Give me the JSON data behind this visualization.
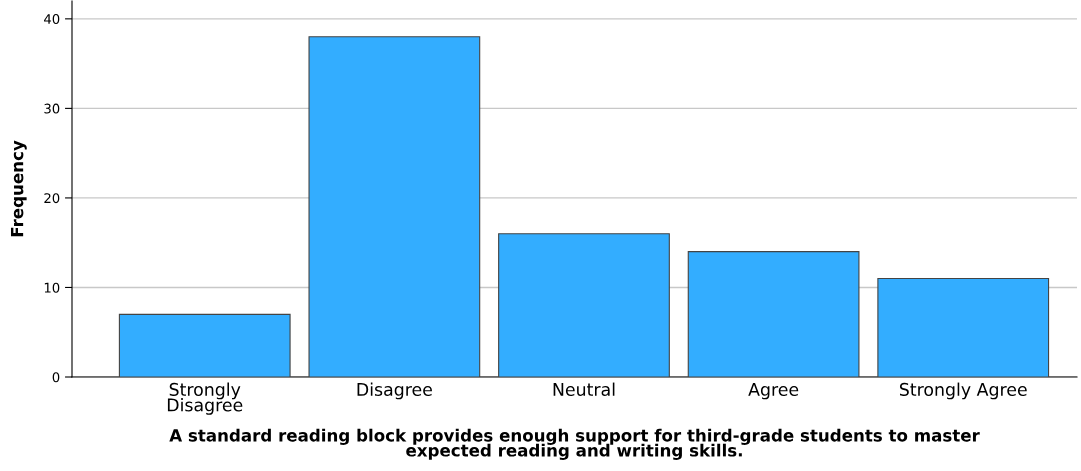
{
  "chart_data": {
    "type": "bar",
    "xlabel": "A standard reading block provides enough support for third-grade students to master\nexpected reading and writing skills.",
    "ylabel": "Frequency",
    "categories": [
      "Strongly\nDisagree",
      "Disagree",
      "Neutral",
      "Agree",
      "Strongly Agree"
    ],
    "values": [
      7,
      38,
      16,
      14,
      11
    ],
    "color": "#33adff",
    "ylim": [
      0,
      42
    ],
    "yticks": [
      0,
      10,
      20,
      30,
      40
    ],
    "grid": "y"
  }
}
